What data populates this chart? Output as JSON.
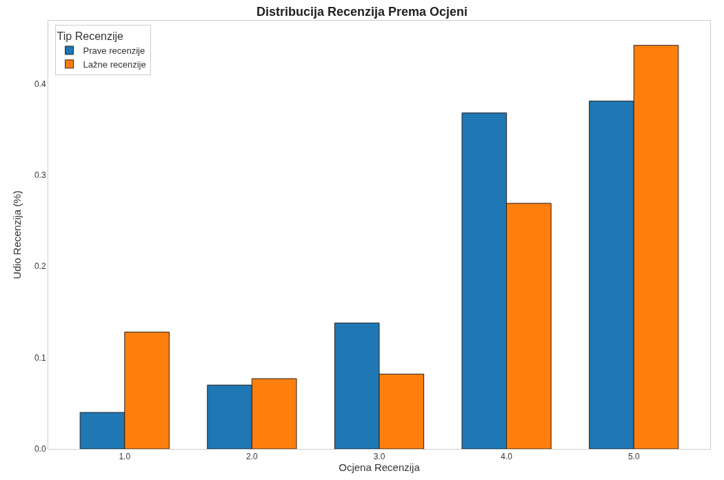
{
  "chart_data": {
    "type": "bar",
    "title": "Distribucija Recenzija Prema Ocjeni",
    "xlabel": "Ocjena Recenzija",
    "ylabel": "Udio Recenzija (%)",
    "legend_title": "Tip Recenzije",
    "categories": [
      "1.0",
      "2.0",
      "3.0",
      "4.0",
      "5.0"
    ],
    "series": [
      {
        "name": "Prave recenzije",
        "color": "#1f77b4",
        "values": [
          0.04,
          0.07,
          0.138,
          0.368,
          0.381
        ]
      },
      {
        "name": "Lažne recenzije",
        "color": "#ff7f0e",
        "values": [
          0.128,
          0.077,
          0.082,
          0.269,
          0.442
        ]
      }
    ],
    "ylim": [
      0,
      0.469
    ],
    "yticks": [
      {
        "value": 0,
        "label": "0.0"
      },
      0.1,
      0.2,
      0.3,
      0.4
    ],
    "legend": "top left"
  }
}
